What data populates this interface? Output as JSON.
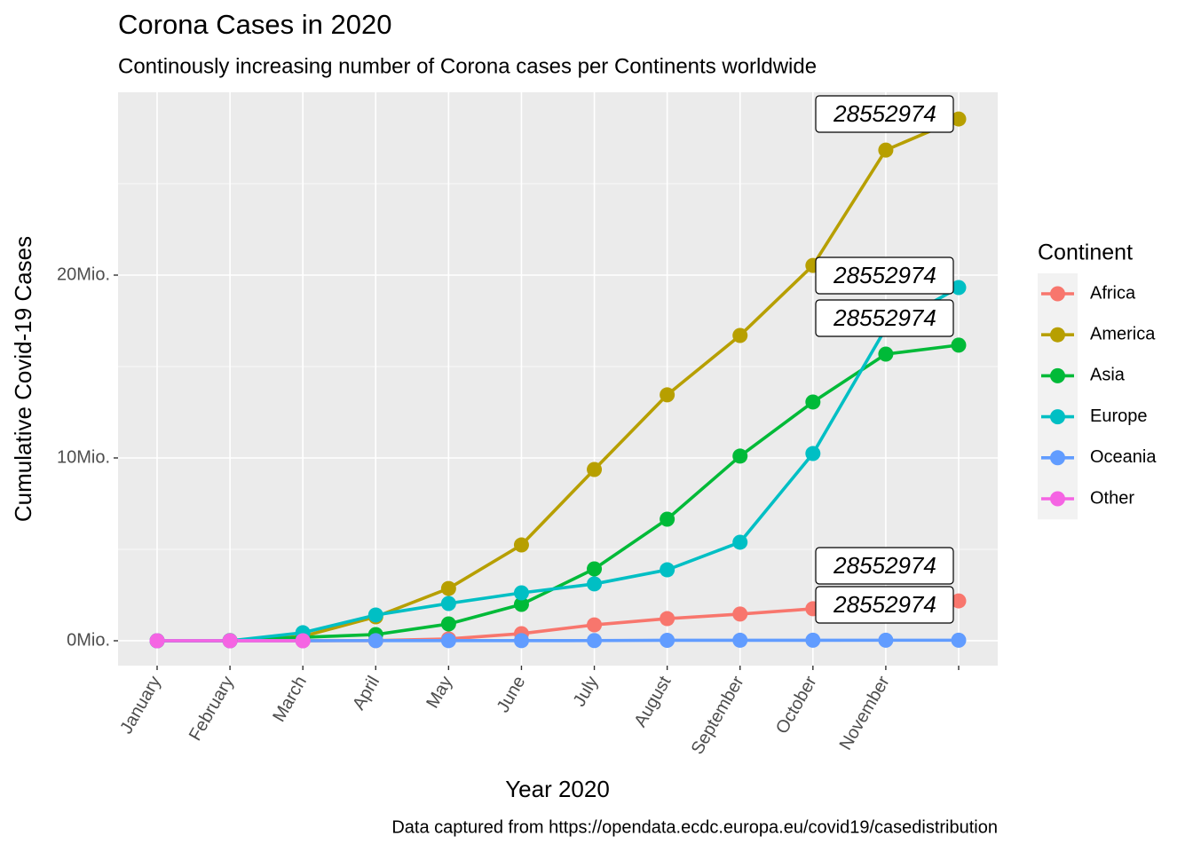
{
  "chart_data": {
    "type": "line",
    "title": "Corona Cases in 2020",
    "subtitle": "Continously increasing number of Corona cases per Continents worldwide",
    "x_label": "Year 2020",
    "y_label": "Cumulative Covid-19 Cases",
    "caption": "Data captured from https://opendata.ecdc.europa.eu/covid19/casedistribution",
    "categories": [
      "January",
      "February",
      "March",
      "April",
      "May",
      "June",
      "July",
      "August",
      "September",
      "October",
      "November",
      null
    ],
    "series": [
      {
        "name": "Africa",
        "color": "#F8766D",
        "values": [
          0,
          0,
          0,
          10000,
          100000,
          390000,
          870000,
          1210000,
          1460000,
          1750000,
          1940000,
          2180000
        ]
      },
      {
        "name": "America",
        "color": "#B79F00",
        "values": [
          0,
          0,
          240000,
          1310000,
          2860000,
          5240000,
          9370000,
          13450000,
          16700000,
          20530000,
          26840000,
          28540000
        ]
      },
      {
        "name": "Asia",
        "color": "#00BA38",
        "values": [
          0,
          10000,
          190000,
          340000,
          920000,
          1990000,
          3930000,
          6650000,
          10100000,
          13060000,
          15680000,
          16170000
        ]
      },
      {
        "name": "Europe",
        "color": "#00BFC4",
        "values": [
          0,
          0,
          440000,
          1410000,
          2040000,
          2620000,
          3110000,
          3880000,
          5390000,
          10240000,
          17090000,
          19320000
        ]
      },
      {
        "name": "Oceania",
        "color": "#619CFF",
        "values": [
          0,
          0,
          4000,
          7000,
          8000,
          8000,
          12000,
          25000,
          27000,
          28000,
          30000,
          30000
        ]
      },
      {
        "name": "Other",
        "color": "#F564E3",
        "values": [
          0,
          0,
          700,
          null,
          null,
          null,
          null,
          null,
          null,
          null,
          null,
          null
        ]
      }
    ],
    "ylim": [
      -1360000,
      30000000
    ],
    "yticks": [
      {
        "value": 0,
        "label": "0Mio."
      },
      {
        "value": 10000000,
        "label": "10Mio."
      },
      {
        "value": 20000000,
        "label": "20Mio."
      }
    ],
    "grid": true,
    "minor_grid": true,
    "legend_title": "Continent",
    "legend": "right",
    "annotations": [
      "28552974",
      "28552974",
      "28552974",
      "28552974",
      "28552974"
    ]
  }
}
